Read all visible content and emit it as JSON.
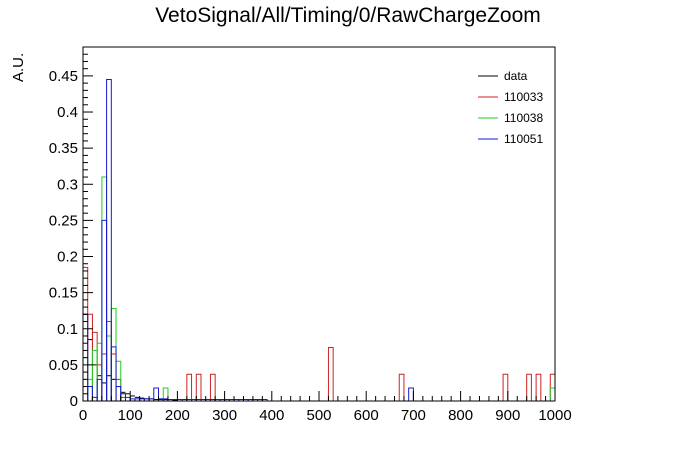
{
  "chart_data": {
    "type": "histogram",
    "title": "VetoSignal/All/Timing/0/RawChargeZoom",
    "xlabel": "",
    "ylabel": "A.U.",
    "xlim": [
      0,
      1000
    ],
    "ylim": [
      0,
      0.49
    ],
    "bin_width": 10,
    "x_ticks": [
      0,
      100,
      200,
      300,
      400,
      500,
      600,
      700,
      800,
      900,
      1000
    ],
    "y_ticks": [
      0,
      0.05,
      0.1,
      0.15,
      0.2,
      0.25,
      0.3,
      0.35,
      0.4,
      0.45
    ],
    "grid": false,
    "legend_position": "top-right",
    "series": [
      {
        "name": "data",
        "color": "#000000",
        "style": "markers",
        "points": [
          {
            "x": 5,
            "y": 0.12
          },
          {
            "x": 15,
            "y": 0.085
          },
          {
            "x": 25,
            "y": 0.05
          },
          {
            "x": 35,
            "y": 0.035
          },
          {
            "x": 45,
            "y": 0.025
          },
          {
            "x": 55,
            "y": 0.035
          },
          {
            "x": 65,
            "y": 0.03
          },
          {
            "x": 75,
            "y": 0.02
          },
          {
            "x": 85,
            "y": 0.012
          },
          {
            "x": 95,
            "y": 0.01
          },
          {
            "x": 105,
            "y": 0.007
          },
          {
            "x": 115,
            "y": 0.005
          },
          {
            "x": 125,
            "y": 0.004
          },
          {
            "x": 135,
            "y": 0.003
          },
          {
            "x": 145,
            "y": 0.003
          },
          {
            "x": 155,
            "y": 0.002
          },
          {
            "x": 165,
            "y": 0.002
          },
          {
            "x": 175,
            "y": 0.002
          },
          {
            "x": 185,
            "y": 0.002
          },
          {
            "x": 195,
            "y": 0.001
          }
        ]
      },
      {
        "name": "110033",
        "color": "#cc2222",
        "style": "step",
        "bins": [
          {
            "x": 0,
            "y": 0.185
          },
          {
            "x": 10,
            "y": 0.12
          },
          {
            "x": 20,
            "y": 0.095
          },
          {
            "x": 30,
            "y": 0.05
          },
          {
            "x": 40,
            "y": 0.065
          },
          {
            "x": 50,
            "y": 0.11
          },
          {
            "x": 60,
            "y": 0.065
          },
          {
            "x": 70,
            "y": 0.03
          },
          {
            "x": 80,
            "y": 0.005
          },
          {
            "x": 220,
            "y": 0.037
          },
          {
            "x": 240,
            "y": 0.037
          },
          {
            "x": 270,
            "y": 0.037
          },
          {
            "x": 520,
            "y": 0.074
          },
          {
            "x": 670,
            "y": 0.037
          },
          {
            "x": 890,
            "y": 0.037
          },
          {
            "x": 940,
            "y": 0.037
          },
          {
            "x": 960,
            "y": 0.037
          },
          {
            "x": 990,
            "y": 0.037
          }
        ]
      },
      {
        "name": "110038",
        "color": "#22cc22",
        "style": "step",
        "bins": [
          {
            "x": 0,
            "y": 0.06
          },
          {
            "x": 10,
            "y": 0.03
          },
          {
            "x": 20,
            "y": 0.07
          },
          {
            "x": 30,
            "y": 0.08
          },
          {
            "x": 40,
            "y": 0.31
          },
          {
            "x": 50,
            "y": 0.09
          },
          {
            "x": 60,
            "y": 0.128
          },
          {
            "x": 70,
            "y": 0.055
          },
          {
            "x": 80,
            "y": 0.01
          },
          {
            "x": 170,
            "y": 0.018
          },
          {
            "x": 990,
            "y": 0.018
          }
        ]
      },
      {
        "name": "110051",
        "color": "#1a1acc",
        "style": "step",
        "bins": [
          {
            "x": 0,
            "y": 0.12
          },
          {
            "x": 10,
            "y": 0.02
          },
          {
            "x": 20,
            "y": 0.005
          },
          {
            "x": 30,
            "y": 0.03
          },
          {
            "x": 40,
            "y": 0.25
          },
          {
            "x": 50,
            "y": 0.445
          },
          {
            "x": 60,
            "y": 0.075
          },
          {
            "x": 70,
            "y": 0.02
          },
          {
            "x": 80,
            "y": 0.01
          },
          {
            "x": 90,
            "y": 0.005
          },
          {
            "x": 100,
            "y": 0.003
          },
          {
            "x": 110,
            "y": 0.003
          },
          {
            "x": 120,
            "y": 0.003
          },
          {
            "x": 130,
            "y": 0.003
          },
          {
            "x": 140,
            "y": 0.003
          },
          {
            "x": 150,
            "y": 0.018
          },
          {
            "x": 160,
            "y": 0.003
          },
          {
            "x": 170,
            "y": 0.003
          },
          {
            "x": 180,
            "y": 0.002
          },
          {
            "x": 190,
            "y": 0.002
          },
          {
            "x": 200,
            "y": 0.002
          },
          {
            "x": 210,
            "y": 0.002
          },
          {
            "x": 220,
            "y": 0.002
          },
          {
            "x": 230,
            "y": 0.002
          },
          {
            "x": 240,
            "y": 0.002
          },
          {
            "x": 250,
            "y": 0.002
          },
          {
            "x": 260,
            "y": 0.002
          },
          {
            "x": 270,
            "y": 0.002
          },
          {
            "x": 280,
            "y": 0.002
          },
          {
            "x": 290,
            "y": 0.002
          },
          {
            "x": 300,
            "y": 0.002
          },
          {
            "x": 310,
            "y": 0.002
          },
          {
            "x": 320,
            "y": 0.002
          },
          {
            "x": 330,
            "y": 0.002
          },
          {
            "x": 340,
            "y": 0.002
          },
          {
            "x": 350,
            "y": 0.002
          },
          {
            "x": 360,
            "y": 0.002
          },
          {
            "x": 370,
            "y": 0.002
          },
          {
            "x": 380,
            "y": 0.002
          },
          {
            "x": 690,
            "y": 0.018
          }
        ]
      }
    ]
  }
}
